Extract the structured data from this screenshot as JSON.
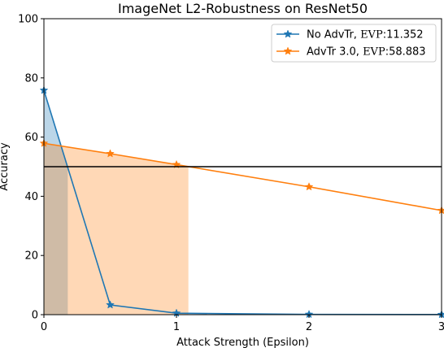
{
  "chart_data": {
    "type": "line",
    "title": "ImageNet L2-Robustness on ResNet50",
    "xlabel": "Attack Strength (Epsilon)",
    "ylabel": "Accuracy",
    "xlim": [
      0,
      3
    ],
    "ylim": [
      0,
      100
    ],
    "xticks": [
      0,
      1,
      2,
      3
    ],
    "yticks": [
      0,
      20,
      40,
      60,
      80,
      100
    ],
    "grid": false,
    "legend_position": "top-right",
    "threshold_line": {
      "y": 50,
      "color": "#000000"
    },
    "series": [
      {
        "name": "No AdvTr",
        "evp_label": "EVP",
        "evp_value": ":11.352",
        "color": "#1f77b4",
        "marker": "star",
        "x": [
          0,
          0.5,
          1,
          2,
          3
        ],
        "values": [
          75.8,
          3.3,
          0.5,
          0.1,
          0.05
        ],
        "shade_until_x": 0.18
      },
      {
        "name": "AdvTr 3.0",
        "evp_label": "EVP",
        "evp_value": ":58.883",
        "color": "#ff7f0e",
        "marker": "star",
        "x": [
          0,
          0.5,
          1,
          2,
          3
        ],
        "values": [
          57.9,
          54.4,
          50.7,
          43.2,
          35.2
        ],
        "shade_until_x": 1.09
      }
    ]
  }
}
